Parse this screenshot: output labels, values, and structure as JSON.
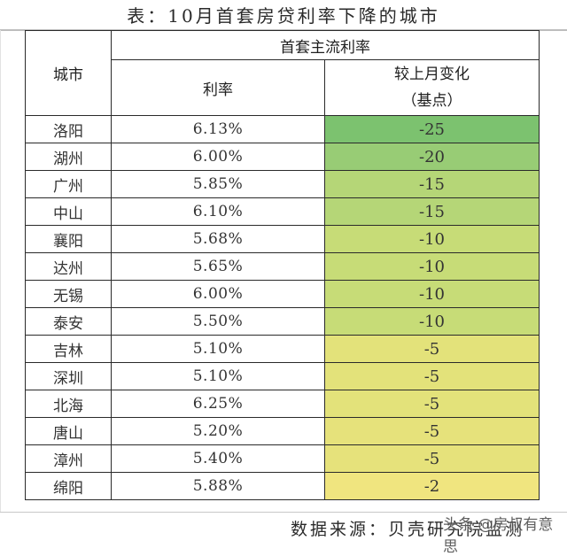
{
  "title": "表：10月首套房贷利率下降的城市",
  "table": {
    "header": {
      "city": "城市",
      "group": "首套主流利率",
      "rate": "利率",
      "change_line1": "较上月变化",
      "change_line2": "（基点）"
    },
    "rows": [
      {
        "city": "洛阳",
        "rate": "6.13%",
        "change": "-25",
        "color": "#7cc26f"
      },
      {
        "city": "湖州",
        "rate": "6.00%",
        "change": "-20",
        "color": "#98cc75"
      },
      {
        "city": "广州",
        "rate": "5.85%",
        "change": "-15",
        "color": "#b5d677"
      },
      {
        "city": "中山",
        "rate": "6.10%",
        "change": "-15",
        "color": "#b5d677"
      },
      {
        "city": "襄阳",
        "rate": "5.68%",
        "change": "-10",
        "color": "#c7dc77"
      },
      {
        "city": "达州",
        "rate": "5.65%",
        "change": "-10",
        "color": "#c7dc77"
      },
      {
        "city": "无锡",
        "rate": "6.00%",
        "change": "-10",
        "color": "#c7dc77"
      },
      {
        "city": "泰安",
        "rate": "5.50%",
        "change": "-10",
        "color": "#c7dc77"
      },
      {
        "city": "吉林",
        "rate": "5.10%",
        "change": "-5",
        "color": "#e3e27a"
      },
      {
        "city": "深圳",
        "rate": "5.10%",
        "change": "-5",
        "color": "#e3e27a"
      },
      {
        "city": "北海",
        "rate": "6.25%",
        "change": "-5",
        "color": "#e3e27a"
      },
      {
        "city": "唐山",
        "rate": "5.20%",
        "change": "-5",
        "color": "#e6e27b"
      },
      {
        "city": "漳州",
        "rate": "5.40%",
        "change": "-5",
        "color": "#e6e27b"
      },
      {
        "city": "绵阳",
        "rate": "5.88%",
        "change": "-2",
        "color": "#f0e57f"
      }
    ]
  },
  "source": "数据来源：贝壳研究院监测",
  "watermark": "头条 @房叔有意思"
}
